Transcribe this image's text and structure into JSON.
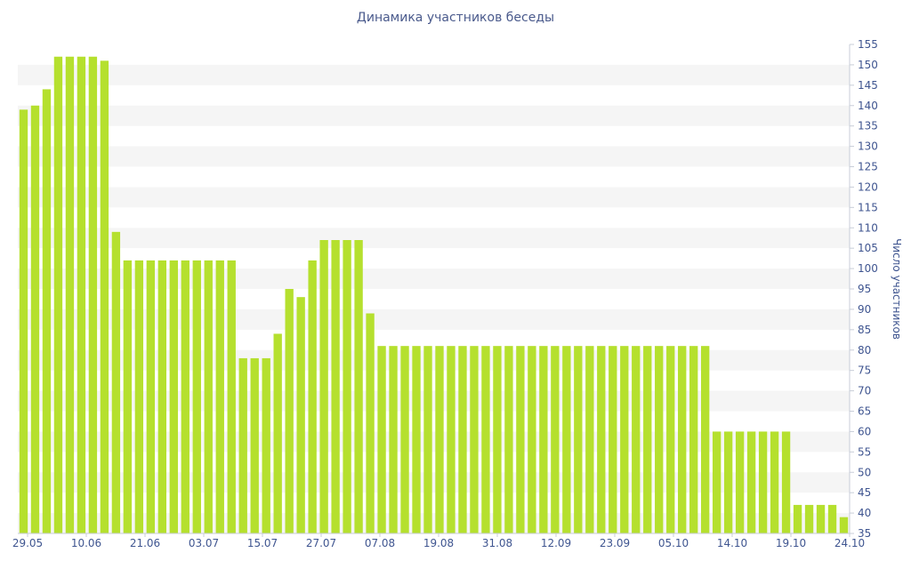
{
  "chart_data": {
    "type": "bar",
    "title": "Динамика участников беседы",
    "xlabel": "",
    "ylabel": "Число участников",
    "ylim": [
      35,
      155
    ],
    "ytick_step": 5,
    "y_axis_side": "right",
    "grid": "horizontal bands",
    "x_tick_labels": [
      "29.05",
      "10.06",
      "21.06",
      "03.07",
      "15.07",
      "27.07",
      "07.08",
      "19.08",
      "31.08",
      "12.09",
      "23.09",
      "05.10",
      "14.10",
      "19.10",
      "24.10"
    ],
    "values": [
      139,
      140,
      144,
      152,
      152,
      152,
      152,
      151,
      109,
      102,
      102,
      102,
      102,
      102,
      102,
      102,
      102,
      102,
      102,
      78,
      78,
      78,
      84,
      95,
      93,
      102,
      107,
      107,
      107,
      107,
      89,
      81,
      81,
      81,
      81,
      81,
      81,
      81,
      81,
      81,
      81,
      81,
      81,
      81,
      81,
      81,
      81,
      81,
      81,
      81,
      81,
      81,
      81,
      81,
      81,
      81,
      81,
      81,
      81,
      81,
      60,
      60,
      60,
      60,
      60,
      60,
      60,
      42,
      42,
      42,
      42,
      39
    ]
  },
  "colors": {
    "bar": "#b5e02e",
    "band": "#f5f5f5",
    "axis_text": "#3f5590",
    "title": "#4a5a8c"
  }
}
